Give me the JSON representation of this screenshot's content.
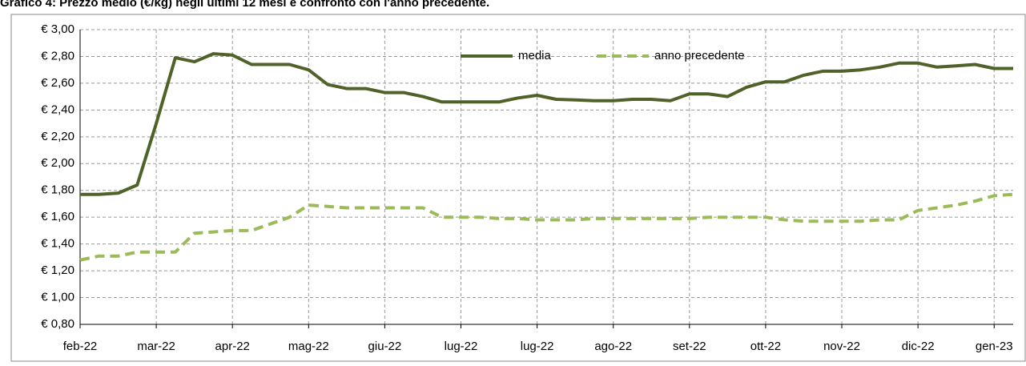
{
  "chart_data": {
    "type": "line",
    "title": "Grafico 4: Prezzo medio  (€/kg) negli ultimi 12 mesi e confronto con l'anno precedente.",
    "categories": [
      "feb-22",
      null,
      null,
      null,
      "mar-22",
      null,
      null,
      null,
      "apr-22",
      null,
      null,
      null,
      "mag-22",
      null,
      null,
      null,
      "giu-22",
      null,
      null,
      null,
      "lug-22",
      null,
      null,
      null,
      "lug-22",
      null,
      null,
      null,
      "ago-22",
      null,
      null,
      null,
      "set-22",
      null,
      null,
      null,
      "ott-22",
      null,
      null,
      null,
      "nov-22",
      null,
      null,
      null,
      "dic-22",
      null,
      null,
      null,
      "gen-23",
      null
    ],
    "series": [
      {
        "name": "media",
        "color": "#4f6228",
        "dashed": false,
        "values": [
          1.77,
          1.77,
          1.78,
          1.84,
          2.3,
          2.79,
          2.76,
          2.82,
          2.81,
          2.74,
          2.74,
          2.74,
          2.7,
          2.59,
          2.56,
          2.56,
          2.53,
          2.53,
          2.5,
          2.46,
          2.46,
          2.46,
          2.46,
          2.49,
          2.51,
          2.48,
          2.475,
          2.47,
          2.47,
          2.48,
          2.48,
          2.47,
          2.52,
          2.52,
          2.5,
          2.57,
          2.61,
          2.61,
          2.66,
          2.69,
          2.69,
          2.7,
          2.72,
          2.75,
          2.75,
          2.72,
          2.73,
          2.74,
          2.71,
          2.71
        ]
      },
      {
        "name": "anno precedente",
        "color": "#9bbb59",
        "dashed": true,
        "values": [
          1.28,
          1.31,
          1.31,
          1.34,
          1.34,
          1.34,
          1.48,
          1.49,
          1.5,
          1.5,
          1.55,
          1.6,
          1.69,
          1.68,
          1.67,
          1.67,
          1.67,
          1.67,
          1.67,
          1.6,
          1.6,
          1.6,
          1.59,
          1.59,
          1.58,
          1.58,
          1.58,
          1.59,
          1.59,
          1.59,
          1.59,
          1.59,
          1.59,
          1.6,
          1.6,
          1.6,
          1.6,
          1.58,
          1.57,
          1.57,
          1.57,
          1.57,
          1.58,
          1.58,
          1.65,
          1.67,
          1.69,
          1.72,
          1.76,
          1.77
        ]
      }
    ],
    "ylim": [
      0.8,
      3.0
    ],
    "yticks": [
      {
        "value": 0.8,
        "label": "€ 0,80"
      },
      {
        "value": 1.0,
        "label": "€ 1,00"
      },
      {
        "value": 1.2,
        "label": "€ 1,20"
      },
      {
        "value": 1.4,
        "label": "€ 1,40"
      },
      {
        "value": 1.6,
        "label": "€ 1,60"
      },
      {
        "value": 1.8,
        "label": "€ 1,80"
      },
      {
        "value": 2.0,
        "label": "€ 2,00"
      },
      {
        "value": 2.2,
        "label": "€ 2,20"
      },
      {
        "value": 2.4,
        "label": "€ 2,40"
      },
      {
        "value": 2.6,
        "label": "€ 2,60"
      },
      {
        "value": 2.8,
        "label": "€ 2,80"
      },
      {
        "value": 3.0,
        "label": "€ 3,00"
      }
    ],
    "grid": true,
    "legend": "top"
  }
}
